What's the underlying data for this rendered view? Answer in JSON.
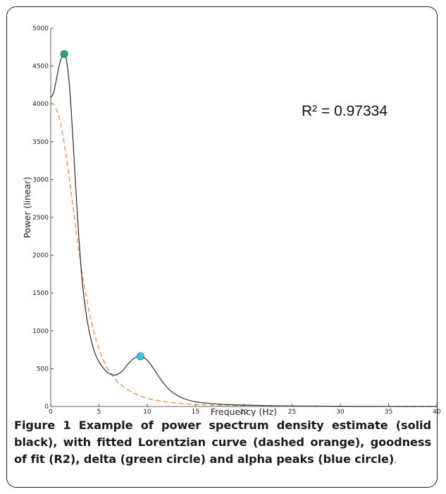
{
  "chart_data": {
    "type": "line",
    "xlabel": "Frequency (Hz)",
    "ylabel": "Power (linear)",
    "xlim": [
      0,
      40
    ],
    "ylim": [
      0,
      5000
    ],
    "x_ticks": [
      0,
      5,
      10,
      15,
      20,
      25,
      30,
      35,
      40
    ],
    "y_ticks": [
      0,
      500,
      1000,
      1500,
      2000,
      2500,
      3000,
      3500,
      4000,
      4500,
      5000
    ],
    "grid": false,
    "series": [
      {
        "style": "solid",
        "color": "#3a3a3a",
        "x": [
          0,
          0.3,
          0.6,
          0.9,
          1.2,
          1.4,
          1.6,
          1.9,
          2.2,
          2.5,
          2.8,
          3.1,
          3.4,
          3.8,
          4.2,
          4.6,
          5.0,
          5.5,
          6.0,
          6.5,
          7.0,
          7.5,
          8.0,
          8.5,
          9.0,
          9.3,
          9.7,
          10.2,
          10.8,
          11.5,
          12.3,
          13.2,
          14.0,
          15.0,
          16.5,
          18.0,
          20.0,
          23.0,
          26.0,
          30.0,
          35.0,
          40.0
        ],
        "y": [
          4080,
          4150,
          4330,
          4520,
          4640,
          4660,
          4600,
          4300,
          3750,
          3100,
          2450,
          1900,
          1480,
          1120,
          870,
          700,
          590,
          500,
          440,
          415,
          430,
          480,
          560,
          625,
          660,
          665,
          645,
          580,
          470,
          340,
          220,
          140,
          95,
          62,
          40,
          28,
          18,
          10,
          6,
          3,
          1,
          0
        ]
      },
      {
        "style": "dashed",
        "color": "#f0a060",
        "x": [
          0,
          0.5,
          1.0,
          1.5,
          2.0,
          2.5,
          3.0,
          3.5,
          4.0,
          4.5,
          5.0,
          5.5,
          6.0,
          7.0,
          8.0,
          9.0,
          10.0,
          11.0,
          12.0,
          13.0,
          14.0,
          15.0,
          17.0,
          19.0,
          22.0,
          25.0,
          30.0,
          35.0,
          40.0
        ],
        "y": [
          4020,
          3950,
          3750,
          3400,
          2950,
          2450,
          1980,
          1580,
          1240,
          975,
          760,
          600,
          480,
          320,
          220,
          155,
          110,
          80,
          60,
          46,
          36,
          28,
          18,
          12,
          7,
          4,
          2,
          1,
          0
        ]
      }
    ],
    "points": [
      {
        "x": 1.4,
        "y": 4660,
        "color": "#1aaa6a"
      },
      {
        "x": 9.3,
        "y": 665,
        "color": "#38c0e8"
      }
    ],
    "annotation": "R² =  0.97334"
  },
  "caption": {
    "label": "Figure 1",
    "text": " Example of power spectrum density estimate (solid black), with fitted Lorentzian curve (dashed orange), goodness of fit (R2), delta (green circle) and alpha peaks (blue circle)",
    "period": "."
  }
}
